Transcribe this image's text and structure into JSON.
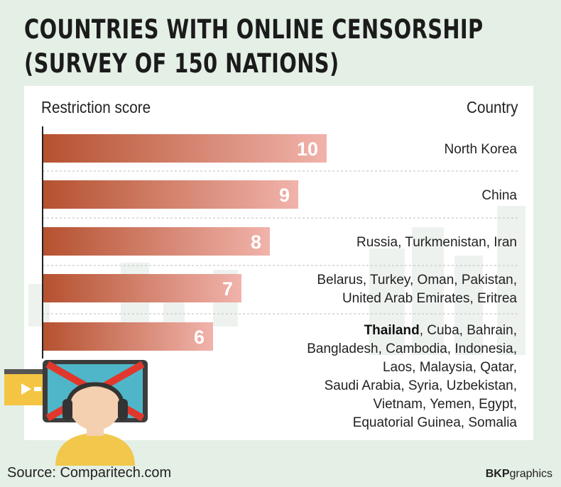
{
  "title": {
    "line1": "COUNTRIES WITH ONLINE CENSORSHIP",
    "line2": "(SURVEY OF 150 NATIONS)"
  },
  "headers": {
    "left": "Restriction score",
    "right": "Country"
  },
  "chart_data": {
    "type": "bar",
    "orientation": "horizontal",
    "xlabel": "Restriction score",
    "ylabel": "Country",
    "xlim": [
      0,
      10
    ],
    "categories": [
      "North Korea",
      "China",
      "Russia, Turkmenistan, Iran",
      "Belarus, Turkey, Oman, Pakistan, United Arab Emirates, Eritrea",
      "Thailand, Cuba, Bahrain, Bangladesh, Cambodia, Indonesia, Laos, Malaysia, Qatar, Saudi Arabia, Syria, Uzbekistan, Vietnam, Yemen, Egypt, Equatorial Guinea, Somalia"
    ],
    "values": [
      10,
      9,
      8,
      7,
      6
    ],
    "value_labels": [
      "10",
      "9",
      "8",
      "7",
      "6"
    ],
    "country_lines": [
      [
        "North Korea"
      ],
      [
        "China"
      ],
      [
        "Russia, Turkmenistan, Iran"
      ],
      [
        "Belarus, Turkey, Oman, Pakistan,",
        "United Arab Emirates, Eritrea"
      ],
      [
        "Thailand, Cuba, Bahrain,",
        "Bangladesh, Cambodia, Indonesia,",
        "Laos, Malaysia, Qatar,",
        "Saudi Arabia, Syria, Uzbekistan,",
        "Vietnam, Yemen, Egypt,",
        "Equatorial Guinea, Somalia"
      ]
    ],
    "highlight": "Thailand",
    "colors": {
      "bar_start": "#b5512f",
      "bar_end": "#f1b3ab",
      "axis": "#222222",
      "divider": "#bdbdbd"
    },
    "grid": false,
    "legend": "none"
  },
  "footer": {
    "source": "Source: Comparitech.com",
    "credit_bold": "BKP",
    "credit_rest": "graphics"
  }
}
